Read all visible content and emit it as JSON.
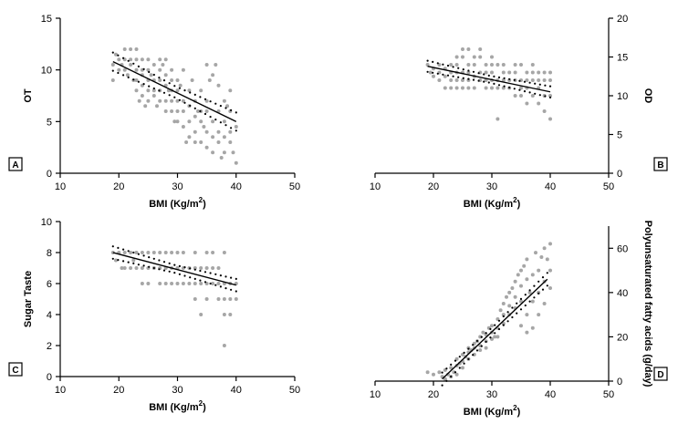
{
  "chart_data": [
    {
      "id": "A",
      "type": "scatter",
      "panel_label": "A",
      "xlabel": "BMI (Kg/m",
      "xlabel_sup": "2",
      "xlabel_end": ")",
      "ylabel": "OT",
      "y_axis_side": "left",
      "xlim": [
        10,
        50
      ],
      "ylim": [
        0,
        15
      ],
      "xticks": [
        "10",
        "20",
        "30",
        "40",
        "50"
      ],
      "yticks": [
        "0",
        "5",
        "10",
        "15"
      ],
      "fit": {
        "x": [
          19,
          40
        ],
        "y": [
          10.8,
          5.0
        ]
      },
      "ci_band": 0.55,
      "points": [
        [
          19,
          9
        ],
        [
          19,
          10.5
        ],
        [
          19.5,
          11.5
        ],
        [
          20,
          11
        ],
        [
          20,
          10
        ],
        [
          20.5,
          10.5
        ],
        [
          21,
          12
        ],
        [
          21,
          11
        ],
        [
          21,
          10
        ],
        [
          21.5,
          9.5
        ],
        [
          22,
          12
        ],
        [
          22,
          11
        ],
        [
          22,
          10.5
        ],
        [
          22.5,
          9
        ],
        [
          23,
          12
        ],
        [
          23,
          11
        ],
        [
          23,
          10
        ],
        [
          23,
          9
        ],
        [
          23,
          8
        ],
        [
          23.5,
          7
        ],
        [
          24,
          11
        ],
        [
          24,
          10
        ],
        [
          24,
          9.5
        ],
        [
          24,
          8.5
        ],
        [
          24,
          7.5
        ],
        [
          24.5,
          6.5
        ],
        [
          25,
          11
        ],
        [
          25,
          10
        ],
        [
          25,
          9
        ],
        [
          25,
          8
        ],
        [
          25,
          7
        ],
        [
          25.5,
          9.5
        ],
        [
          26,
          10.5
        ],
        [
          26,
          9
        ],
        [
          26,
          8
        ],
        [
          26,
          7.5
        ],
        [
          26.5,
          6.5
        ],
        [
          27,
          11
        ],
        [
          27,
          10
        ],
        [
          27,
          9
        ],
        [
          27,
          8
        ],
        [
          27,
          7
        ],
        [
          27.5,
          10.5
        ],
        [
          28,
          11
        ],
        [
          28,
          9.5
        ],
        [
          28,
          8.5
        ],
        [
          28,
          7
        ],
        [
          28,
          6
        ],
        [
          28.5,
          8
        ],
        [
          29,
          10
        ],
        [
          29,
          9
        ],
        [
          29,
          8
        ],
        [
          29,
          7
        ],
        [
          29,
          6
        ],
        [
          29.5,
          5
        ],
        [
          30,
          9
        ],
        [
          30,
          8
        ],
        [
          30,
          7
        ],
        [
          30,
          6
        ],
        [
          30,
          5
        ],
        [
          30.5,
          8.5
        ],
        [
          31,
          10
        ],
        [
          31,
          7
        ],
        [
          31,
          6
        ],
        [
          31,
          4.5
        ],
        [
          31.5,
          3
        ],
        [
          32,
          8
        ],
        [
          32,
          6.5
        ],
        [
          32,
          5
        ],
        [
          32,
          3.5
        ],
        [
          32.5,
          9
        ],
        [
          33,
          7
        ],
        [
          33,
          5.5
        ],
        [
          33,
          4
        ],
        [
          33,
          3
        ],
        [
          33.5,
          6
        ],
        [
          34,
          8
        ],
        [
          34,
          6
        ],
        [
          34,
          5
        ],
        [
          34,
          3
        ],
        [
          34.5,
          4.5
        ],
        [
          35,
          10.5
        ],
        [
          35,
          7
        ],
        [
          35,
          6
        ],
        [
          35,
          4
        ],
        [
          35,
          2.5
        ],
        [
          35.5,
          9
        ],
        [
          36,
          9.5
        ],
        [
          36,
          5
        ],
        [
          36,
          3.5
        ],
        [
          36,
          2
        ],
        [
          36.5,
          10.5
        ],
        [
          37,
          8.5
        ],
        [
          37,
          6
        ],
        [
          37,
          4
        ],
        [
          37,
          3
        ],
        [
          37.5,
          1.5
        ],
        [
          38,
          7
        ],
        [
          38,
          5
        ],
        [
          38,
          3.5
        ],
        [
          38,
          2
        ],
        [
          38.5,
          6.5
        ],
        [
          39,
          8
        ],
        [
          39,
          6
        ],
        [
          39,
          4
        ],
        [
          39,
          3
        ],
        [
          39.5,
          2
        ],
        [
          40,
          4.5
        ],
        [
          40,
          1
        ]
      ]
    },
    {
      "id": "B",
      "type": "scatter",
      "panel_label": "B",
      "xlabel": "BMI (Kg/m",
      "xlabel_sup": "2",
      "xlabel_end": ")",
      "ylabel": "OD",
      "y_axis_side": "right",
      "xlim": [
        10,
        50
      ],
      "ylim": [
        0,
        20
      ],
      "xticks": [
        "10",
        "20",
        "30",
        "40",
        "50"
      ],
      "yticks": [
        "0",
        "5",
        "10",
        "15",
        "20"
      ],
      "fit": {
        "x": [
          19,
          40
        ],
        "y": [
          13.8,
          10.5
        ]
      },
      "ci_band": 0.45,
      "points": [
        [
          19,
          14
        ],
        [
          19.5,
          13
        ],
        [
          20,
          13.5
        ],
        [
          20,
          12.5
        ],
        [
          21,
          14
        ],
        [
          21,
          13
        ],
        [
          21,
          12
        ],
        [
          22,
          13.5
        ],
        [
          22,
          12.5
        ],
        [
          22,
          11
        ],
        [
          23,
          14
        ],
        [
          23,
          13
        ],
        [
          23,
          12
        ],
        [
          23,
          11
        ],
        [
          24,
          15
        ],
        [
          24,
          14
        ],
        [
          24,
          13
        ],
        [
          24,
          12
        ],
        [
          24,
          11
        ],
        [
          25,
          16
        ],
        [
          25,
          15
        ],
        [
          25,
          13
        ],
        [
          25,
          12
        ],
        [
          25,
          11
        ],
        [
          26,
          16
        ],
        [
          26,
          14
        ],
        [
          26,
          13
        ],
        [
          26,
          12
        ],
        [
          26,
          11
        ],
        [
          27,
          15
        ],
        [
          27,
          14
        ],
        [
          27,
          12.5
        ],
        [
          27,
          11
        ],
        [
          28,
          16
        ],
        [
          28,
          15
        ],
        [
          28,
          13
        ],
        [
          28,
          12
        ],
        [
          29,
          14
        ],
        [
          29,
          13
        ],
        [
          29,
          12
        ],
        [
          29,
          11
        ],
        [
          30,
          15
        ],
        [
          30,
          14
        ],
        [
          30,
          13
        ],
        [
          30,
          12
        ],
        [
          30,
          11
        ],
        [
          31,
          14
        ],
        [
          31,
          12
        ],
        [
          31,
          11
        ],
        [
          31,
          7
        ],
        [
          32,
          14
        ],
        [
          32,
          13
        ],
        [
          32,
          12
        ],
        [
          32,
          11
        ],
        [
          33,
          13
        ],
        [
          33,
          12
        ],
        [
          33,
          11
        ],
        [
          34,
          14
        ],
        [
          34,
          13
        ],
        [
          34,
          12
        ],
        [
          34,
          10
        ],
        [
          35,
          14
        ],
        [
          35,
          12
        ],
        [
          35,
          11
        ],
        [
          35,
          10
        ],
        [
          36,
          13
        ],
        [
          36,
          12
        ],
        [
          36,
          11
        ],
        [
          36,
          9
        ],
        [
          37,
          14
        ],
        [
          37,
          13
        ],
        [
          37,
          12
        ],
        [
          37,
          10
        ],
        [
          38,
          13
        ],
        [
          38,
          12
        ],
        [
          38,
          11
        ],
        [
          38,
          9
        ],
        [
          39,
          13
        ],
        [
          39,
          12
        ],
        [
          39,
          10
        ],
        [
          39,
          8
        ],
        [
          40,
          13
        ],
        [
          40,
          12
        ],
        [
          40,
          10
        ],
        [
          40,
          7
        ]
      ]
    },
    {
      "id": "C",
      "type": "scatter",
      "panel_label": "C",
      "xlabel": "BMI (Kg/m",
      "xlabel_sup": "2",
      "xlabel_end": ")",
      "ylabel": "Sugar Taste",
      "y_axis_side": "left",
      "xlim": [
        10,
        50
      ],
      "ylim": [
        0,
        10
      ],
      "xticks": [
        "10",
        "20",
        "30",
        "40",
        "50"
      ],
      "yticks": [
        "0",
        "2",
        "4",
        "6",
        "8",
        "10"
      ],
      "fit": {
        "x": [
          19,
          40
        ],
        "y": [
          8.0,
          5.9
        ]
      },
      "ci_band": 0.25,
      "points": [
        [
          19,
          8
        ],
        [
          19.5,
          7.5
        ],
        [
          20,
          8
        ],
        [
          20.5,
          7
        ],
        [
          21,
          8
        ],
        [
          21,
          7
        ],
        [
          22,
          8
        ],
        [
          22,
          7
        ],
        [
          22.5,
          7.5
        ],
        [
          23,
          8
        ],
        [
          23,
          7
        ],
        [
          24,
          8
        ],
        [
          24,
          7
        ],
        [
          24,
          6
        ],
        [
          25,
          8
        ],
        [
          25,
          7
        ],
        [
          25,
          6
        ],
        [
          26,
          8
        ],
        [
          26,
          7
        ],
        [
          27,
          8
        ],
        [
          27,
          7
        ],
        [
          27,
          6
        ],
        [
          28,
          8
        ],
        [
          28,
          7
        ],
        [
          28,
          6
        ],
        [
          29,
          8
        ],
        [
          29,
          7
        ],
        [
          29,
          6
        ],
        [
          30,
          8
        ],
        [
          30,
          7
        ],
        [
          30,
          6
        ],
        [
          31,
          8
        ],
        [
          31,
          7
        ],
        [
          31,
          6
        ],
        [
          32,
          7
        ],
        [
          32,
          6
        ],
        [
          33,
          8
        ],
        [
          33,
          7
        ],
        [
          33,
          6
        ],
        [
          33,
          5
        ],
        [
          34,
          7
        ],
        [
          34,
          6
        ],
        [
          34,
          4
        ],
        [
          35,
          8
        ],
        [
          35,
          7
        ],
        [
          35,
          6
        ],
        [
          35,
          5
        ],
        [
          36,
          8
        ],
        [
          36,
          7
        ],
        [
          36,
          6
        ],
        [
          37,
          7
        ],
        [
          37,
          6
        ],
        [
          37,
          5
        ],
        [
          38,
          8
        ],
        [
          38,
          6
        ],
        [
          38,
          5
        ],
        [
          38,
          4
        ],
        [
          38,
          2
        ],
        [
          39,
          6
        ],
        [
          39,
          5
        ],
        [
          39,
          4
        ],
        [
          40,
          6
        ],
        [
          40,
          5
        ]
      ]
    },
    {
      "id": "D",
      "type": "scatter",
      "panel_label": "D",
      "xlabel": "BMI (Kg/m",
      "xlabel_sup": "2",
      "xlabel_end": ")",
      "ylabel": "Polyunsaturated fatty acids (g/day)",
      "y_axis_side": "right",
      "xlim": [
        10,
        50
      ],
      "ylim": [
        0,
        70
      ],
      "xticks": [
        "10",
        "20",
        "30",
        "40",
        "50"
      ],
      "yticks": [
        "0",
        "20",
        "40",
        "60"
      ],
      "fit": {
        "x": [
          21.5,
          39.5
        ],
        "y": [
          1,
          46
        ]
      },
      "ci_band": 1.8,
      "points": [
        [
          19,
          4
        ],
        [
          20,
          3
        ],
        [
          21,
          4
        ],
        [
          21.5,
          2
        ],
        [
          22,
          5
        ],
        [
          22,
          1
        ],
        [
          22.5,
          3
        ],
        [
          23,
          6
        ],
        [
          23,
          2
        ],
        [
          23.5,
          4
        ],
        [
          24,
          10
        ],
        [
          24,
          7
        ],
        [
          24,
          3
        ],
        [
          24.5,
          8
        ],
        [
          25,
          12
        ],
        [
          25,
          9
        ],
        [
          25,
          6
        ],
        [
          25.5,
          11
        ],
        [
          26,
          15
        ],
        [
          26,
          13
        ],
        [
          26,
          10
        ],
        [
          26.5,
          14
        ],
        [
          27,
          17
        ],
        [
          27,
          15
        ],
        [
          27,
          12
        ],
        [
          27.5,
          18
        ],
        [
          28,
          20
        ],
        [
          28,
          16
        ],
        [
          28,
          14
        ],
        [
          28.5,
          22
        ],
        [
          29,
          21
        ],
        [
          29,
          18
        ],
        [
          29,
          15
        ],
        [
          29.5,
          24
        ],
        [
          30,
          25
        ],
        [
          30,
          22
        ],
        [
          30,
          19
        ],
        [
          30.5,
          20
        ],
        [
          31,
          28
        ],
        [
          31,
          24
        ],
        [
          31,
          20
        ],
        [
          31.5,
          32
        ],
        [
          32,
          35
        ],
        [
          32,
          30
        ],
        [
          32,
          26
        ],
        [
          32.5,
          38
        ],
        [
          33,
          40
        ],
        [
          33,
          34
        ],
        [
          33,
          30
        ],
        [
          33.5,
          42
        ],
        [
          34,
          45
        ],
        [
          34,
          38
        ],
        [
          34,
          33
        ],
        [
          34.5,
          48
        ],
        [
          35,
          50
        ],
        [
          35,
          43
        ],
        [
          35,
          36
        ],
        [
          35,
          25
        ],
        [
          35.5,
          52
        ],
        [
          36,
          55
        ],
        [
          36,
          46
        ],
        [
          36,
          30
        ],
        [
          36,
          22
        ],
        [
          36.5,
          40
        ],
        [
          37,
          48
        ],
        [
          37,
          36
        ],
        [
          37,
          24
        ],
        [
          37.5,
          58
        ],
        [
          38,
          50
        ],
        [
          38,
          40
        ],
        [
          38,
          30
        ],
        [
          38.5,
          56
        ],
        [
          39,
          60
        ],
        [
          39,
          45
        ],
        [
          39,
          35
        ],
        [
          39.5,
          55
        ],
        [
          40,
          62
        ],
        [
          40,
          50
        ],
        [
          40,
          42
        ]
      ]
    }
  ]
}
